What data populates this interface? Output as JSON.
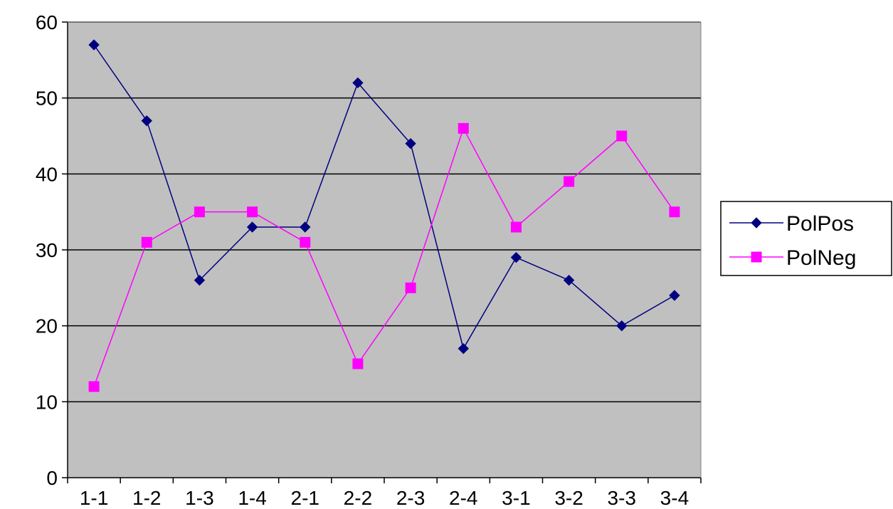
{
  "chart_data": {
    "type": "line",
    "title": "",
    "xlabel": "",
    "ylabel": "",
    "categories": [
      "1-1",
      "1-2",
      "1-3",
      "1-4",
      "2-1",
      "2-2",
      "2-3",
      "2-4",
      "3-1",
      "3-2",
      "3-3",
      "3-4"
    ],
    "ylim": [
      0,
      60
    ],
    "yticks": [
      0,
      10,
      20,
      30,
      40,
      50,
      60
    ],
    "grid": true,
    "legend_position": "right",
    "plot_background": "#c0c0c0",
    "series": [
      {
        "name": "PolPos",
        "color": "#000080",
        "marker": "diamond",
        "values": [
          57,
          47,
          26,
          33,
          33,
          52,
          44,
          17,
          29,
          26,
          20,
          24
        ]
      },
      {
        "name": "PolNeg",
        "color": "#ff00ff",
        "marker": "square",
        "values": [
          12,
          31,
          35,
          35,
          31,
          15,
          25,
          46,
          33,
          39,
          45,
          35
        ]
      }
    ]
  }
}
